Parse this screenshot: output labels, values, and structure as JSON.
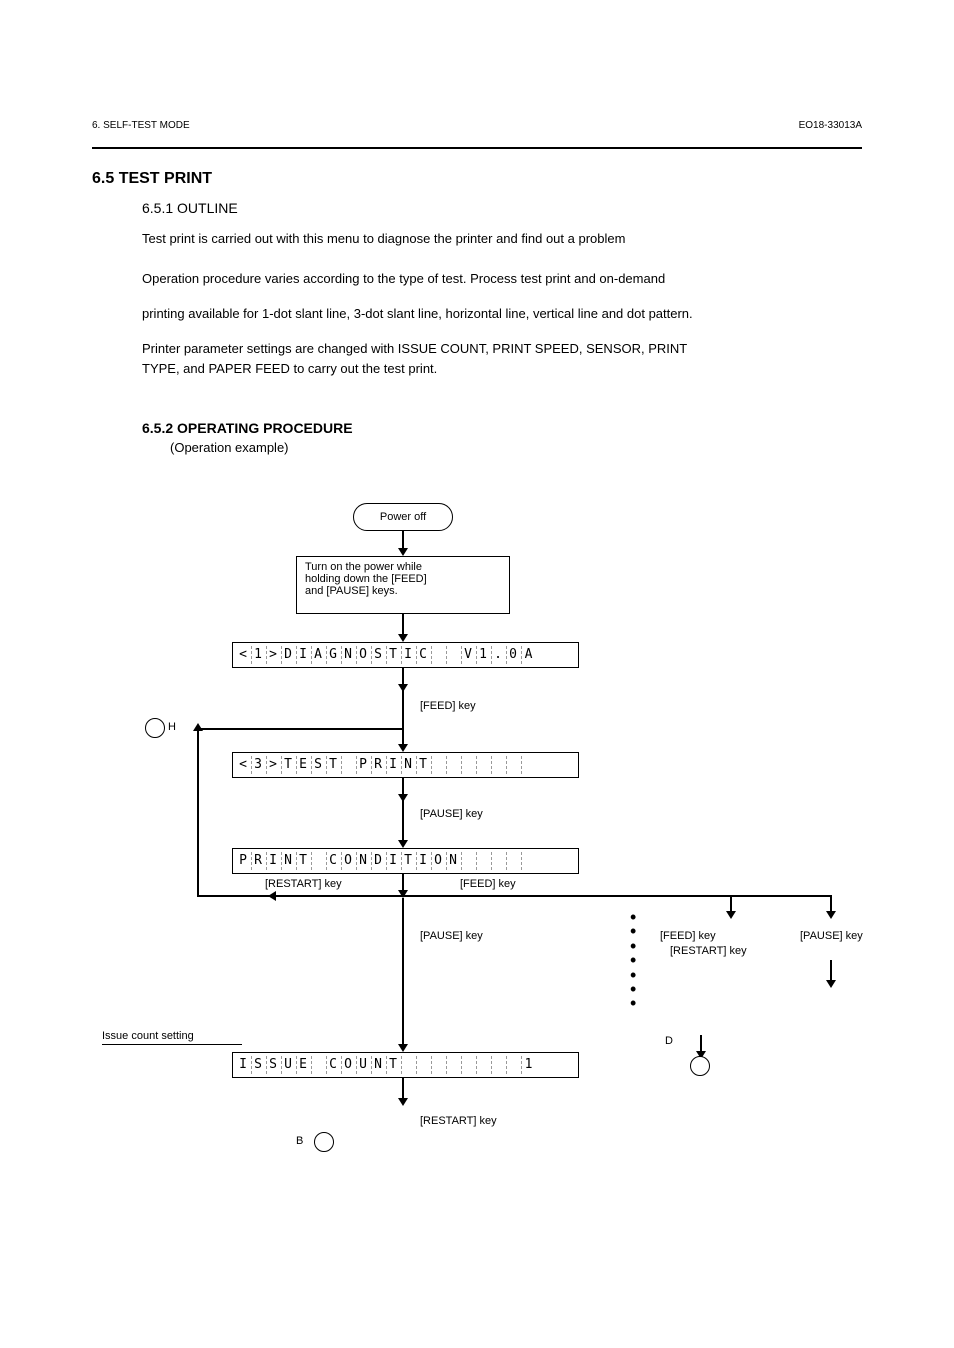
{
  "header": {
    "left": "6. SELF-TEST MODE",
    "right": "EO18-33013A"
  },
  "section": {
    "title": "6.5 TEST PRINT",
    "subtitle": "6.5.1 OUTLINE",
    "para1": "Test print is carried out with this menu to diagnose the printer and find out a problem",
    "para2": "Operation procedure varies according to the type of test. Process test print and on-demand",
    "para3": "printing available for 1-dot slant line, 3-dot slant line, horizontal line, vertical line and dot pattern.",
    "para4": "Printer parameter settings are changed with ISSUE COUNT, PRINT SPEED, SENSOR, PRINT",
    "para5": "TYPE, and PAPER FEED to carry out the test print."
  },
  "operation": {
    "title": "6.5.2 OPERATING PROCEDURE",
    "example": "(Operation example)"
  },
  "flowchart": {
    "power_off": "Power off",
    "power_on_line1": "Turn on the power while",
    "power_on_line2": "holding down the [FEED]",
    "power_on_line3": "and [PAUSE] keys.",
    "lcd1_chars": [
      "<",
      "1",
      ">",
      "D",
      "I",
      "A",
      "G",
      "N",
      "O",
      "S",
      "T",
      "I",
      "C",
      " ",
      " ",
      "V",
      "1",
      ".",
      "0",
      "A"
    ],
    "feed_key": "[FEED] key",
    "lcd2_chars": [
      "<",
      "3",
      ">",
      "T",
      "E",
      "S",
      "T",
      " ",
      "P",
      "R",
      "I",
      "N",
      "T",
      " ",
      " ",
      " ",
      " ",
      " ",
      " ",
      " "
    ],
    "pause_key": "[PAUSE] key",
    "lcd3_chars": [
      "P",
      "R",
      "I",
      "N",
      "T",
      " ",
      "C",
      "O",
      "N",
      "D",
      "I",
      "T",
      "I",
      "O",
      "N",
      " ",
      " ",
      " ",
      " ",
      " "
    ],
    "restart_key": "[RESTART] key",
    "pause_key2": "[PAUSE] key",
    "lcd4_chars": [
      "I",
      "S",
      "S",
      "U",
      "E",
      " ",
      "C",
      "O",
      "U",
      "N",
      "T",
      " ",
      " ",
      " ",
      " ",
      " ",
      " ",
      " ",
      " ",
      "1"
    ],
    "issue_count_label": "Issue count setting",
    "label_h": "H",
    "label_b": "B",
    "label_d": "D"
  },
  "styling": {
    "background": "#ffffff",
    "text_color": "#000000",
    "border_color": "#000000"
  }
}
